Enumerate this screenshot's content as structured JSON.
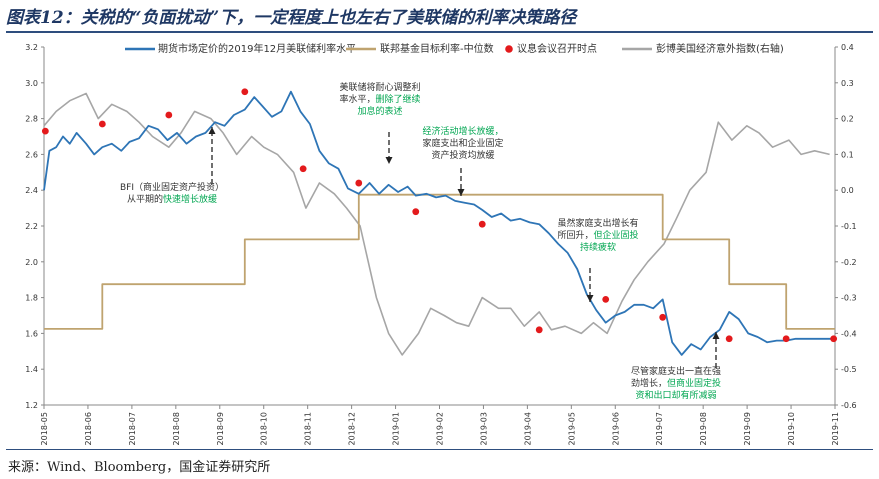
{
  "title": "图表12：关税的“负面扰动”下，一定程度上也左右了美联储的利率决策路径",
  "source": "来源：Wind、Bloomberg，国金证券研究所",
  "chart_data": {
    "type": "line",
    "legend_placement": "top",
    "grid": false,
    "x_ticks": [
      "2018-05",
      "2018-06",
      "2018-07",
      "2018-08",
      "2018-09",
      "2018-10",
      "2018-11",
      "2018-12",
      "2019-01",
      "2019-02",
      "2019-03",
      "2019-04",
      "2019-05",
      "2019-06",
      "2019-07",
      "2019-08",
      "2019-09",
      "2019-10",
      "2019-11"
    ],
    "x_range": [
      "2018-05-01",
      "2019-12-05"
    ],
    "ylim_left": [
      1.2,
      3.2
    ],
    "ylim_right": [
      -0.6,
      0.4
    ],
    "y_ticks_left": [
      "3.2",
      "3.0",
      "2.8",
      "2.6",
      "2.4",
      "2.2",
      "2.0",
      "1.8",
      "1.6",
      "1.4",
      "1.2"
    ],
    "y_ticks_right": [
      "0.4",
      "0.3",
      "0.2",
      "0.1",
      "0.0",
      "-0.1",
      "-0.2",
      "-0.3",
      "-0.4",
      "-0.5",
      "-0.6"
    ],
    "colors": {
      "futures": "#2e75b6",
      "fed_target": "#bfa36f",
      "fomc": "#e31a1c",
      "surprise": "#a6a6a6",
      "annotation_green": "#00a651"
    },
    "series": [
      {
        "name": "期货市场定价的2019年12月美联储利率水平",
        "axis": "left",
        "x": [
          "2018-05-01",
          "2018-05-05",
          "2018-05-10",
          "2018-05-15",
          "2018-05-20",
          "2018-05-25",
          "2018-06-01",
          "2018-06-07",
          "2018-06-13",
          "2018-06-20",
          "2018-06-27",
          "2018-07-03",
          "2018-07-10",
          "2018-07-17",
          "2018-07-24",
          "2018-07-31",
          "2018-08-07",
          "2018-08-14",
          "2018-08-21",
          "2018-08-28",
          "2018-09-04",
          "2018-09-11",
          "2018-09-18",
          "2018-09-26",
          "2018-10-03",
          "2018-10-09",
          "2018-10-16",
          "2018-10-23",
          "2018-10-30",
          "2018-11-06",
          "2018-11-13",
          "2018-11-20",
          "2018-11-27",
          "2018-12-04",
          "2018-12-11",
          "2018-12-19",
          "2018-12-27",
          "2019-01-03",
          "2019-01-10",
          "2019-01-17",
          "2019-01-24",
          "2019-01-30",
          "2019-02-07",
          "2019-02-14",
          "2019-02-21",
          "2019-02-28",
          "2019-03-07",
          "2019-03-14",
          "2019-03-20",
          "2019-03-27",
          "2019-04-03",
          "2019-04-10",
          "2019-04-17",
          "2019-04-24",
          "2019-05-01",
          "2019-05-08",
          "2019-05-15",
          "2019-05-22",
          "2019-05-29",
          "2019-06-05",
          "2019-06-12",
          "2019-06-19",
          "2019-06-26",
          "2019-07-03",
          "2019-07-10",
          "2019-07-17",
          "2019-07-24",
          "2019-07-31",
          "2019-08-07",
          "2019-08-14",
          "2019-08-21",
          "2019-08-28",
          "2019-09-04",
          "2019-09-11",
          "2019-09-18",
          "2019-09-25",
          "2019-10-02",
          "2019-10-09",
          "2019-10-16",
          "2019-10-23",
          "2019-10-30",
          "2019-11-06",
          "2019-11-13",
          "2019-11-20",
          "2019-11-27",
          "2019-12-04"
        ],
        "values": [
          2.4,
          2.62,
          2.64,
          2.7,
          2.66,
          2.72,
          2.66,
          2.6,
          2.64,
          2.66,
          2.62,
          2.67,
          2.69,
          2.76,
          2.74,
          2.68,
          2.72,
          2.66,
          2.7,
          2.72,
          2.78,
          2.76,
          2.82,
          2.85,
          2.92,
          2.87,
          2.81,
          2.84,
          2.95,
          2.84,
          2.77,
          2.62,
          2.55,
          2.52,
          2.41,
          2.38,
          2.44,
          2.38,
          2.43,
          2.39,
          2.42,
          2.37,
          2.38,
          2.36,
          2.37,
          2.34,
          2.33,
          2.32,
          2.29,
          2.25,
          2.27,
          2.23,
          2.24,
          2.22,
          2.21,
          2.16,
          2.1,
          2.05,
          1.96,
          1.82,
          1.73,
          1.66,
          1.7,
          1.72,
          1.76,
          1.76,
          1.74,
          1.79,
          1.55,
          1.48,
          1.54,
          1.51,
          1.58,
          1.62,
          1.72,
          1.68,
          1.6,
          1.58,
          1.55,
          1.56,
          1.56,
          1.57,
          1.57,
          1.57,
          1.57,
          1.57
        ]
      },
      {
        "name": "联邦基金目标利率-中位数",
        "axis": "left",
        "x": [
          "2018-05-01",
          "2018-06-13",
          "2018-06-13",
          "2018-09-26",
          "2018-09-26",
          "2018-12-19",
          "2018-12-19",
          "2019-07-31",
          "2019-07-31",
          "2019-09-18",
          "2019-09-18",
          "2019-10-30",
          "2019-10-30",
          "2019-12-05"
        ],
        "values": [
          1.625,
          1.625,
          1.875,
          1.875,
          2.125,
          2.125,
          2.375,
          2.375,
          2.125,
          2.125,
          1.875,
          1.875,
          1.625,
          1.625
        ]
      },
      {
        "name": "议息会议召开时点",
        "type": "scatter",
        "axis": "left",
        "x": [
          "2018-05-02",
          "2018-06-13",
          "2018-08-01",
          "2018-09-26",
          "2018-11-08",
          "2018-12-19",
          "2019-01-30",
          "2019-03-20",
          "2019-05-01",
          "2019-06-19",
          "2019-07-31",
          "2019-09-18",
          "2019-10-30",
          "2019-12-04"
        ],
        "values": [
          2.73,
          2.77,
          2.82,
          2.95,
          2.52,
          2.44,
          2.28,
          2.21,
          1.62,
          1.79,
          1.69,
          1.57,
          1.57,
          1.57
        ]
      },
      {
        "name": "彭博美国经济意外指数(右轴)",
        "axis": "right",
        "x": [
          "2018-05-01",
          "2018-05-10",
          "2018-05-20",
          "2018-06-01",
          "2018-06-10",
          "2018-06-20",
          "2018-07-01",
          "2018-07-10",
          "2018-07-20",
          "2018-08-01",
          "2018-08-10",
          "2018-08-20",
          "2018-09-01",
          "2018-09-10",
          "2018-09-20",
          "2018-10-01",
          "2018-10-10",
          "2018-10-20",
          "2018-11-01",
          "2018-11-10",
          "2018-11-20",
          "2018-12-01",
          "2018-12-10",
          "2018-12-20",
          "2019-01-01",
          "2019-01-10",
          "2019-01-20",
          "2019-02-01",
          "2019-02-10",
          "2019-02-20",
          "2019-03-01",
          "2019-03-10",
          "2019-03-20",
          "2019-04-01",
          "2019-04-10",
          "2019-04-20",
          "2019-05-01",
          "2019-05-10",
          "2019-05-20",
          "2019-06-01",
          "2019-06-10",
          "2019-06-20",
          "2019-07-01",
          "2019-07-10",
          "2019-07-20",
          "2019-08-01",
          "2019-08-10",
          "2019-08-20",
          "2019-09-01",
          "2019-09-10",
          "2019-09-20",
          "2019-10-01",
          "2019-10-10",
          "2019-10-20",
          "2019-11-01",
          "2019-11-10",
          "2019-11-20",
          "2019-12-01"
        ],
        "values": [
          0.18,
          0.22,
          0.25,
          0.27,
          0.2,
          0.24,
          0.22,
          0.19,
          0.15,
          0.12,
          0.16,
          0.22,
          0.2,
          0.16,
          0.1,
          0.15,
          0.12,
          0.1,
          0.05,
          -0.05,
          0.02,
          -0.01,
          -0.05,
          -0.1,
          -0.3,
          -0.4,
          -0.46,
          -0.4,
          -0.33,
          -0.35,
          -0.37,
          -0.38,
          -0.3,
          -0.33,
          -0.33,
          -0.38,
          -0.34,
          -0.39,
          -0.38,
          -0.4,
          -0.37,
          -0.4,
          -0.31,
          -0.25,
          -0.2,
          -0.15,
          -0.08,
          0.0,
          0.05,
          0.19,
          0.14,
          0.18,
          0.16,
          0.12,
          0.14,
          0.1,
          0.11,
          0.1
        ]
      }
    ],
    "annotations": [
      {
        "id": "bfi",
        "x": "2018-09-26",
        "arrow": "up",
        "lines": [
          {
            "parts": [
              {
                "text": "BFI（商业固定资产投资）",
                "color": "#333333"
              }
            ]
          },
          {
            "parts": [
              {
                "text": "从平期的",
                "color": "#333333"
              },
              {
                "text": "快速增长放缓",
                "color": "#00a651"
              }
            ]
          }
        ]
      },
      {
        "id": "fed-patient",
        "x": "2019-01-03",
        "arrow": "down",
        "lines": [
          {
            "parts": [
              {
                "text": "美联储将耐心调整利",
                "color": "#333333"
              }
            ]
          },
          {
            "parts": [
              {
                "text": "率水平，",
                "color": "#333333"
              },
              {
                "text": "删除了继续",
                "color": "#00a651"
              }
            ]
          },
          {
            "parts": [
              {
                "text": "加息的表述",
                "color": "#00a651"
              }
            ]
          }
        ]
      },
      {
        "id": "econ-slow",
        "x": "2019-03-01",
        "arrow": "down",
        "lines": [
          {
            "parts": [
              {
                "text": "经济活动增长放缓，",
                "color": "#00a651"
              }
            ]
          },
          {
            "parts": [
              {
                "text": "家庭支出和企业固定",
                "color": "#333333"
              }
            ]
          },
          {
            "parts": [
              {
                "text": "资产投资均放缓",
                "color": "#333333"
              }
            ]
          }
        ]
      },
      {
        "id": "household-rebound",
        "x": "2019-06-05",
        "arrow": "down",
        "lines": [
          {
            "parts": [
              {
                "text": "虽然家庭支出增长有",
                "color": "#333333"
              }
            ]
          },
          {
            "parts": [
              {
                "text": "所回升，",
                "color": "#333333"
              },
              {
                "text": "但企业固投",
                "color": "#00a651"
              }
            ]
          },
          {
            "parts": [
              {
                "text": "持续疲软",
                "color": "#00a651"
              }
            ]
          }
        ]
      },
      {
        "id": "trade-weak",
        "x": "2019-09-18",
        "arrow": "up",
        "lines": [
          {
            "parts": [
              {
                "text": "尽管家庭支出一直在强",
                "color": "#333333"
              }
            ]
          },
          {
            "parts": [
              {
                "text": "劲增长，",
                "color": "#333333"
              },
              {
                "text": "但商业固定投",
                "color": "#00a651"
              }
            ]
          },
          {
            "parts": [
              {
                "text": "资和出口却有所减弱",
                "color": "#00a651"
              }
            ]
          }
        ]
      }
    ]
  }
}
